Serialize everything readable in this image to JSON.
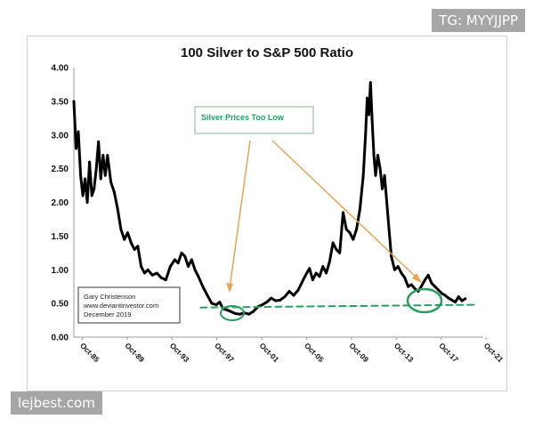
{
  "watermarks": {
    "top_right": "TG: MYYJJPP",
    "bottom_left": "lejbest.com"
  },
  "chart_data": {
    "type": "line",
    "title": "100 Silver to S&P 500 Ratio",
    "xlabel": "",
    "ylabel": "",
    "ylim": [
      0,
      4
    ],
    "xlim": [
      1985,
      2021.5
    ],
    "y_ticks": [
      "0.00",
      "0.50",
      "1.00",
      "1.50",
      "2.00",
      "2.50",
      "3.00",
      "3.50",
      "4.00"
    ],
    "x_ticks": [
      {
        "label": "Oct-85",
        "x": 1985.75
      },
      {
        "label": "Oct-89",
        "x": 1989.75
      },
      {
        "label": "Oct-93",
        "x": 1993.75
      },
      {
        "label": "Oct-97",
        "x": 1997.75
      },
      {
        "label": "Oct-01",
        "x": 2001.75
      },
      {
        "label": "Oct-05",
        "x": 2005.75
      },
      {
        "label": "Oct-09",
        "x": 2009.75
      },
      {
        "label": "Oct-13",
        "x": 2013.75
      },
      {
        "label": "Oct-17",
        "x": 2017.75
      },
      {
        "label": "Oct-21",
        "x": 2021.75
      }
    ],
    "series": [
      {
        "name": "",
        "color": "#000000",
        "points": [
          [
            1985.0,
            3.5
          ],
          [
            1985.2,
            2.8
          ],
          [
            1985.4,
            3.05
          ],
          [
            1985.6,
            2.4
          ],
          [
            1985.8,
            2.1
          ],
          [
            1986.0,
            2.35
          ],
          [
            1986.2,
            2.0
          ],
          [
            1986.4,
            2.6
          ],
          [
            1986.6,
            2.1
          ],
          [
            1986.8,
            2.2
          ],
          [
            1987.0,
            2.5
          ],
          [
            1987.2,
            2.9
          ],
          [
            1987.4,
            2.35
          ],
          [
            1987.6,
            2.7
          ],
          [
            1987.8,
            2.4
          ],
          [
            1988.0,
            2.7
          ],
          [
            1988.3,
            2.3
          ],
          [
            1988.6,
            2.15
          ],
          [
            1988.9,
            1.9
          ],
          [
            1989.2,
            1.6
          ],
          [
            1989.5,
            1.45
          ],
          [
            1989.8,
            1.55
          ],
          [
            1990.1,
            1.4
          ],
          [
            1990.4,
            1.3
          ],
          [
            1990.7,
            1.35
          ],
          [
            1991.0,
            1.05
          ],
          [
            1991.3,
            0.95
          ],
          [
            1991.6,
            1.0
          ],
          [
            1992.0,
            0.92
          ],
          [
            1992.4,
            0.95
          ],
          [
            1992.8,
            0.88
          ],
          [
            1993.2,
            0.85
          ],
          [
            1993.6,
            1.05
          ],
          [
            1994.0,
            1.15
          ],
          [
            1994.3,
            1.1
          ],
          [
            1994.6,
            1.25
          ],
          [
            1994.9,
            1.2
          ],
          [
            1995.2,
            1.05
          ],
          [
            1995.5,
            1.15
          ],
          [
            1995.8,
            1.0
          ],
          [
            1996.1,
            0.9
          ],
          [
            1996.5,
            0.75
          ],
          [
            1996.9,
            0.62
          ],
          [
            1997.3,
            0.5
          ],
          [
            1997.7,
            0.48
          ],
          [
            1998.0,
            0.52
          ],
          [
            1998.3,
            0.42
          ],
          [
            1998.7,
            0.4
          ],
          [
            1999.0,
            0.38
          ],
          [
            1999.4,
            0.35
          ],
          [
            1999.8,
            0.34
          ],
          [
            2000.2,
            0.36
          ],
          [
            2000.6,
            0.34
          ],
          [
            2001.0,
            0.38
          ],
          [
            2001.4,
            0.45
          ],
          [
            2001.8,
            0.48
          ],
          [
            2002.2,
            0.52
          ],
          [
            2002.6,
            0.58
          ],
          [
            2003.0,
            0.54
          ],
          [
            2003.4,
            0.55
          ],
          [
            2003.8,
            0.6
          ],
          [
            2004.2,
            0.68
          ],
          [
            2004.6,
            0.62
          ],
          [
            2005.0,
            0.7
          ],
          [
            2005.3,
            0.8
          ],
          [
            2005.6,
            0.9
          ],
          [
            2006.0,
            1.02
          ],
          [
            2006.3,
            0.85
          ],
          [
            2006.6,
            0.95
          ],
          [
            2006.9,
            0.9
          ],
          [
            2007.2,
            1.05
          ],
          [
            2007.5,
            0.95
          ],
          [
            2007.8,
            1.12
          ],
          [
            2008.1,
            1.4
          ],
          [
            2008.4,
            1.3
          ],
          [
            2008.7,
            1.25
          ],
          [
            2009.0,
            1.85
          ],
          [
            2009.3,
            1.6
          ],
          [
            2009.6,
            1.55
          ],
          [
            2009.9,
            1.45
          ],
          [
            2010.2,
            1.6
          ],
          [
            2010.5,
            1.9
          ],
          [
            2010.8,
            2.4
          ],
          [
            2011.0,
            3.0
          ],
          [
            2011.15,
            3.55
          ],
          [
            2011.3,
            3.3
          ],
          [
            2011.45,
            3.78
          ],
          [
            2011.6,
            3.2
          ],
          [
            2011.75,
            2.7
          ],
          [
            2011.9,
            2.4
          ],
          [
            2012.1,
            2.7
          ],
          [
            2012.3,
            2.5
          ],
          [
            2012.5,
            2.2
          ],
          [
            2012.7,
            2.4
          ],
          [
            2012.9,
            2.0
          ],
          [
            2013.1,
            1.6
          ],
          [
            2013.3,
            1.2
          ],
          [
            2013.6,
            1.0
          ],
          [
            2013.9,
            1.05
          ],
          [
            2014.2,
            0.95
          ],
          [
            2014.5,
            0.88
          ],
          [
            2014.8,
            0.75
          ],
          [
            2015.1,
            0.78
          ],
          [
            2015.4,
            0.72
          ],
          [
            2015.7,
            0.68
          ],
          [
            2016.0,
            0.76
          ],
          [
            2016.3,
            0.85
          ],
          [
            2016.6,
            0.92
          ],
          [
            2016.9,
            0.8
          ],
          [
            2017.2,
            0.75
          ],
          [
            2017.5,
            0.7
          ],
          [
            2017.8,
            0.65
          ],
          [
            2018.1,
            0.62
          ],
          [
            2018.4,
            0.58
          ],
          [
            2018.7,
            0.55
          ],
          [
            2019.0,
            0.52
          ],
          [
            2019.3,
            0.6
          ],
          [
            2019.6,
            0.54
          ],
          [
            2019.9,
            0.57
          ]
        ]
      },
      {
        "name": "",
        "color": "#2a9d62",
        "dashed": true,
        "points": [
          [
            1996.3,
            0.44
          ],
          [
            2020.8,
            0.48
          ]
        ]
      }
    ],
    "annotations": {
      "callout": "Silver Prices Too Low",
      "source_box": [
        "Gary Christenson",
        "www.deviantinvestor.com",
        "December 2019"
      ]
    }
  }
}
